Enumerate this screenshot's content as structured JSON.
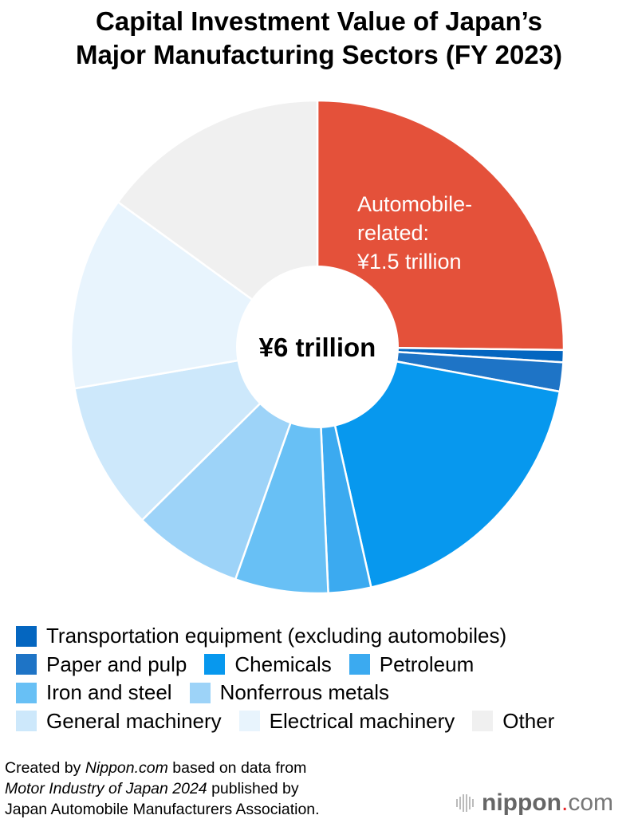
{
  "chart_data": {
    "type": "pie",
    "donut": true,
    "title_lines": [
      "Capital Investment Value of Japan’s",
      "Major Manufacturing Sectors (FY 2023)"
    ],
    "center_label": "¥6 trillion",
    "unit": "share of total (%)",
    "slices": [
      {
        "name": "Automobile-related",
        "value": 25.2,
        "color": "#E4513A",
        "label_lines": [
          "Automobile-",
          "related:",
          "¥1.5 trillion"
        ]
      },
      {
        "name": "Transportation equipment (excluding automobiles)",
        "value": 0.8,
        "color": "#0466C0"
      },
      {
        "name": "Paper and pulp",
        "value": 1.9,
        "color": "#1E74C6"
      },
      {
        "name": "Chemicals",
        "value": 18.6,
        "color": "#0798EE"
      },
      {
        "name": "Petroleum",
        "value": 2.8,
        "color": "#3BAAF0"
      },
      {
        "name": "Iron and steel",
        "value": 6.1,
        "color": "#68C0F5"
      },
      {
        "name": "Nonferrous metals",
        "value": 7.2,
        "color": "#9DD3F8"
      },
      {
        "name": "General machinery",
        "value": 9.7,
        "color": "#CDE8FB"
      },
      {
        "name": "Electrical machinery",
        "value": 12.7,
        "color": "#E8F4FD"
      },
      {
        "name": "Other",
        "value": 15.0,
        "color": "#F0F0F0"
      }
    ],
    "legend_placement": "bottom"
  },
  "footer": {
    "line1_prefix": "Created by ",
    "line1_italic": "Nippon.com",
    "line1_suffix": " based on data from",
    "line2_italic": "Motor Industry of Japan 2024",
    "line2_suffix": " published by",
    "line3": "Japan Automobile Manufacturers Association."
  },
  "logo": {
    "name": "nippon",
    "dot": ".",
    "suffix": "com"
  }
}
